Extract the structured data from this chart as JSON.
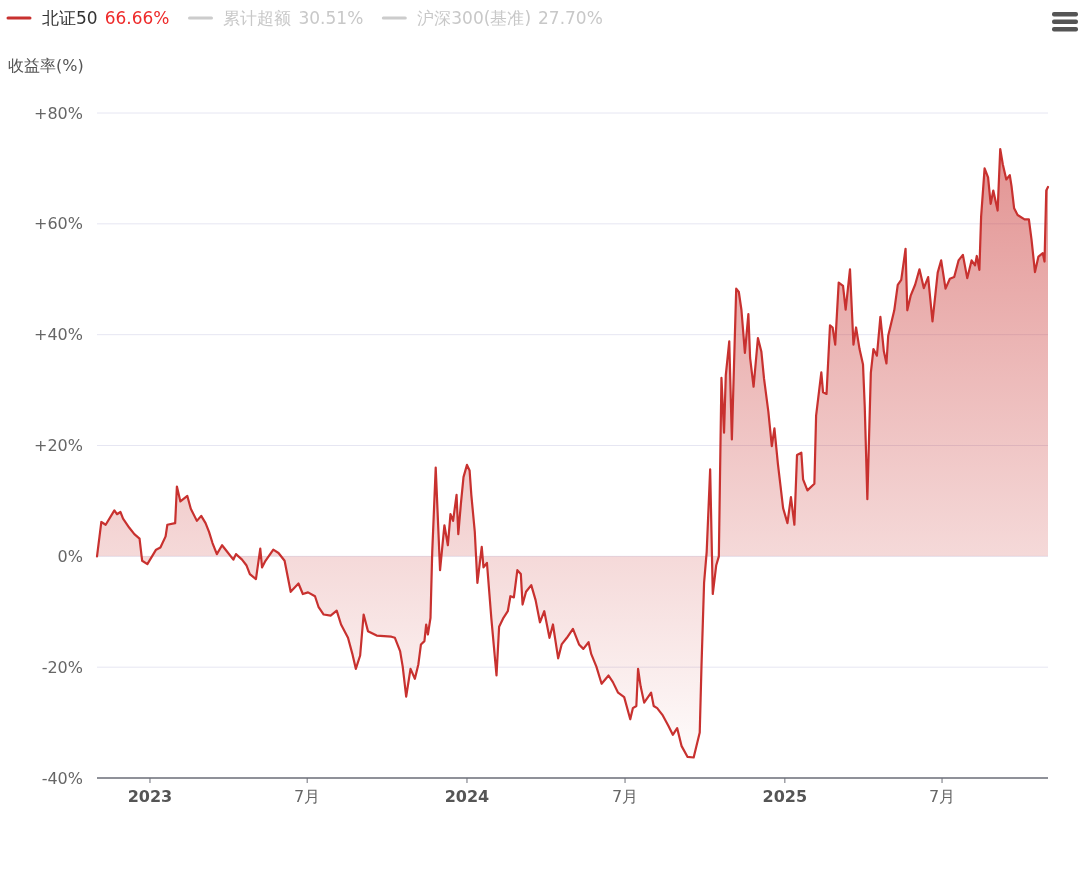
{
  "chart_data": {
    "type": "area",
    "ylabel": "收益率(%)",
    "legend": "top left",
    "grid": "y",
    "xlim": [
      "2022-11-01",
      "2025-10-31"
    ],
    "xticks": [
      {
        "value": "2023-01-01",
        "label": "2023"
      },
      {
        "value": "2023-07-01",
        "label": "7月"
      },
      {
        "value": "2024-01-01",
        "label": "2024"
      },
      {
        "value": "2024-07-01",
        "label": "7月"
      },
      {
        "value": "2025-01-01",
        "label": "2025"
      },
      {
        "value": "2025-07-01",
        "label": "7月"
      }
    ],
    "ylim": [
      -40,
      80
    ],
    "yticks": [
      {
        "value": -40,
        "label": "-40%"
      },
      {
        "value": -20,
        "label": "-20%"
      },
      {
        "value": 0,
        "label": "0%"
      },
      {
        "value": 20,
        "label": "+20%"
      },
      {
        "value": 40,
        "label": "+40%"
      },
      {
        "value": 60,
        "label": "+60%"
      },
      {
        "value": 80,
        "label": "+80%"
      }
    ],
    "annotations": [
      "66.66%",
      "30.51%",
      "27.70%"
    ],
    "x": [
      "2022-11-01",
      "2022-11-06",
      "2022-11-11",
      "2022-11-21",
      "2022-11-24",
      "2022-11-28",
      "2022-12-01",
      "2022-12-08",
      "2022-12-14",
      "2022-12-20",
      "2022-12-23",
      "2022-12-29",
      "2023-01-08",
      "2023-01-13",
      "2023-01-19",
      "2023-01-21",
      "2023-01-30",
      "2023-02-01",
      "2023-02-05",
      "2023-02-13",
      "2023-02-17",
      "2023-02-24",
      "2023-03-01",
      "2023-03-06",
      "2023-03-10",
      "2023-03-14",
      "2023-03-19",
      "2023-03-25",
      "2023-03-30",
      "2023-04-07",
      "2023-04-10",
      "2023-04-17",
      "2023-04-22",
      "2023-04-26",
      "2023-05-03",
      "2023-05-08",
      "2023-05-10",
      "2023-05-14",
      "2023-05-23",
      "2023-05-29",
      "2023-06-05",
      "2023-06-12",
      "2023-06-21",
      "2023-06-26",
      "2023-07-02",
      "2023-07-10",
      "2023-07-14",
      "2023-07-20",
      "2023-07-28",
      "2023-08-04",
      "2023-08-09",
      "2023-08-17",
      "2023-08-22",
      "2023-08-26",
      "2023-08-31",
      "2023-09-04",
      "2023-09-09",
      "2023-09-19",
      "2023-10-06",
      "2023-10-10",
      "2023-10-16",
      "2023-10-19",
      "2023-10-23",
      "2023-10-28",
      "2023-11-02",
      "2023-11-06",
      "2023-11-09",
      "2023-11-13",
      "2023-11-15",
      "2023-11-17",
      "2023-11-20",
      "2023-11-22",
      "2023-11-26",
      "2023-12-01",
      "2023-12-06",
      "2023-12-10",
      "2023-12-13",
      "2023-12-16",
      "2023-12-20",
      "2023-12-22",
      "2023-12-25",
      "2023-12-28",
      "2024-01-01",
      "2024-01-04",
      "2024-01-06",
      "2024-01-10",
      "2024-01-13",
      "2024-01-18",
      "2024-01-20",
      "2024-01-24",
      "2024-01-29",
      "2024-02-04",
      "2024-02-07",
      "2024-02-12",
      "2024-02-17",
      "2024-02-20",
      "2024-02-24",
      "2024-02-28",
      "2024-03-03",
      "2024-03-05",
      "2024-03-09",
      "2024-03-15",
      "2024-03-20",
      "2024-03-25",
      "2024-03-30",
      "2024-04-05",
      "2024-04-09",
      "2024-04-15",
      "2024-04-19",
      "2024-04-25",
      "2024-05-02",
      "2024-05-09",
      "2024-05-14",
      "2024-05-20",
      "2024-05-23",
      "2024-05-29",
      "2024-06-04",
      "2024-06-12",
      "2024-06-17",
      "2024-06-23",
      "2024-06-30",
      "2024-07-07",
      "2024-07-10",
      "2024-07-14",
      "2024-07-16",
      "2024-07-19",
      "2024-07-23",
      "2024-07-31",
      "2024-08-03",
      "2024-08-07",
      "2024-08-13",
      "2024-08-20",
      "2024-08-25",
      "2024-08-30",
      "2024-09-04",
      "2024-09-11",
      "2024-09-18",
      "2024-09-25",
      "2024-09-27",
      "2024-09-30",
      "2024-10-03",
      "2024-10-07",
      "2024-10-10",
      "2024-10-14",
      "2024-10-17",
      "2024-10-20",
      "2024-10-23",
      "2024-10-25",
      "2024-10-29",
      "2024-11-01",
      "2024-11-06",
      "2024-11-09",
      "2024-11-12",
      "2024-11-16",
      "2024-11-20",
      "2024-11-22",
      "2024-11-26",
      "2024-12-01",
      "2024-12-05",
      "2024-12-08",
      "2024-12-13",
      "2024-12-17",
      "2024-12-20",
      "2024-12-24",
      "2024-12-27",
      "2024-12-30",
      "2025-01-04",
      "2025-01-08",
      "2025-01-12",
      "2025-01-15",
      "2025-01-20",
      "2025-01-22",
      "2025-01-27",
      "2025-02-04",
      "2025-02-06",
      "2025-02-12",
      "2025-02-14",
      "2025-02-18",
      "2025-02-22",
      "2025-02-25",
      "2025-02-28",
      "2025-03-04",
      "2025-03-09",
      "2025-03-12",
      "2025-03-17",
      "2025-03-21",
      "2025-03-24",
      "2025-03-28",
      "2025-04-01",
      "2025-04-03",
      "2025-04-06",
      "2025-04-10",
      "2025-04-13",
      "2025-04-17",
      "2025-04-21",
      "2025-04-25",
      "2025-04-28",
      "2025-04-30",
      "2025-05-07",
      "2025-05-11",
      "2025-05-15",
      "2025-05-20",
      "2025-05-22",
      "2025-05-26",
      "2025-05-31",
      "2025-06-05",
      "2025-06-10",
      "2025-06-15",
      "2025-06-20",
      "2025-06-26",
      "2025-06-30",
      "2025-07-05",
      "2025-07-10",
      "2025-07-15",
      "2025-07-20",
      "2025-07-25",
      "2025-07-30",
      "2025-08-04",
      "2025-08-08",
      "2025-08-10",
      "2025-08-13",
      "2025-08-15",
      "2025-08-19",
      "2025-08-23",
      "2025-08-26",
      "2025-08-29",
      "2025-09-03",
      "2025-09-06",
      "2025-09-09",
      "2025-09-13",
      "2025-09-17",
      "2025-09-19",
      "2025-09-22",
      "2025-09-26",
      "2025-10-04",
      "2025-10-09",
      "2025-10-12",
      "2025-10-16",
      "2025-10-20",
      "2025-10-25",
      "2025-10-27",
      "2025-10-29",
      "2025-10-31"
    ],
    "series": [
      {
        "name": "北证50",
        "color": "#c8312f",
        "values": [
          0,
          6.2,
          5.7,
          8.3,
          7.6,
          8,
          6.8,
          5.2,
          4,
          3.2,
          -0.8,
          -1.4,
          1.2,
          1.6,
          3.6,
          5.7,
          6,
          12.6,
          9.9,
          10.9,
          8.6,
          6.4,
          7.3,
          6,
          4.4,
          2.4,
          0.4,
          2,
          1,
          -0.6,
          0.4,
          -0.6,
          -1.6,
          -3.2,
          -4.1,
          1.4,
          -2,
          -0.8,
          1.2,
          0.6,
          -0.8,
          -6.4,
          -4.9,
          -6.8,
          -6.5,
          -7.2,
          -9.1,
          -10.5,
          -10.7,
          -9.8,
          -12.3,
          -14.7,
          -17.6,
          -20.3,
          -17.9,
          -10.5,
          -13.5,
          -14.3,
          -14.5,
          -14.7,
          -17.1,
          -19.9,
          -25.3,
          -20.3,
          -22.1,
          -19.5,
          -15.9,
          -15.3,
          -12.3,
          -14.1,
          -11.1,
          0.8,
          16,
          -2.5,
          5.6,
          2,
          7.6,
          6.4,
          11.1,
          4,
          9.5,
          14.3,
          16.5,
          15.5,
          11.1,
          4.4,
          -4.8,
          1.7,
          -2,
          -1.2,
          -11.1,
          -21.5,
          -12.7,
          -11.1,
          -9.9,
          -7.2,
          -7.4,
          -2.5,
          -3.2,
          -8.7,
          -6.4,
          -5.2,
          -7.9,
          -11.9,
          -9.9,
          -14.7,
          -12.3,
          -18.4,
          -15.9,
          -14.7,
          -13.1,
          -15.9,
          -16.7,
          -15.5,
          -17.6,
          -19.9,
          -23,
          -21.5,
          -22.7,
          -24.6,
          -25.4,
          -29.4,
          -27.4,
          -27,
          -20.3,
          -23.5,
          -26.4,
          -24.6,
          -27,
          -27.4,
          -28.6,
          -30.6,
          -32.2,
          -31,
          -34.2,
          -36.2,
          -36.3,
          -31.8,
          -19.9,
          -4.8,
          0.8,
          15.7,
          -6.8,
          -1.6,
          0,
          32.2,
          22.3,
          32.7,
          38.8,
          21.1,
          48.3,
          47.7,
          44.5,
          36.7,
          43.7,
          35.8,
          30.6,
          39.4,
          36.9,
          32.1,
          26.1,
          19.9,
          23.1,
          16.7,
          12.7,
          8.7,
          6,
          10.7,
          5.7,
          18.3,
          18.7,
          13.9,
          11.9,
          13.1,
          25.4,
          33.2,
          29.6,
          29.3,
          41.7,
          41.3,
          38.2,
          49.4,
          48.8,
          44.5,
          51.8,
          38.2,
          41.3,
          37.4,
          34.6,
          27,
          10.3,
          33.1,
          37.4,
          36.2,
          43.2,
          37,
          34.8,
          39.8,
          44.4,
          49,
          49.9,
          55.5,
          44.4,
          47.1,
          49,
          51.8,
          48.4,
          50.4,
          42.4,
          51.2,
          53.4,
          48.3,
          50.1,
          50.4,
          53.4,
          54.4,
          50.2,
          53.4,
          52.5,
          54.2,
          51.7,
          61.3,
          70,
          68.4,
          63.6,
          66,
          62.4,
          73.5,
          70.7,
          68,
          68.8,
          66.8,
          62.8,
          61.6,
          60.8,
          60.8,
          57.2,
          51.3,
          54.1,
          54.7,
          53.2,
          66,
          66.66
        ]
      },
      {
        "name": "累计超额",
        "color": "#cccccc",
        "values": [
          null,
          null,
          null,
          null,
          null,
          null,
          null,
          null,
          null,
          null,
          null,
          null,
          null,
          null,
          null,
          null,
          null,
          null,
          null,
          null,
          null,
          null,
          null,
          null,
          null,
          null,
          null,
          null,
          null,
          null,
          null,
          null,
          null,
          null,
          null,
          null,
          null,
          null,
          null,
          null,
          null,
          null,
          null,
          null,
          null,
          null,
          null,
          null,
          null,
          null,
          null,
          null,
          null,
          null,
          null,
          null,
          null,
          null,
          null,
          null,
          null,
          null,
          null,
          null,
          null,
          null,
          null,
          null,
          null,
          null,
          null,
          null,
          null,
          null,
          null,
          null,
          null,
          null,
          null,
          null,
          null,
          null,
          null,
          null,
          null,
          null,
          null,
          null,
          null,
          null,
          null,
          null,
          null,
          null,
          null,
          null,
          null,
          null,
          null,
          null,
          null,
          null,
          null,
          null,
          null,
          null,
          null,
          null,
          null,
          null,
          null,
          null,
          null,
          null,
          null,
          null,
          null,
          null,
          null,
          null,
          null,
          null,
          null,
          null,
          null,
          null,
          null,
          null,
          null,
          null,
          null,
          null,
          null,
          null,
          null,
          null,
          null,
          null,
          null,
          null,
          null,
          null,
          null,
          null,
          null,
          null,
          null,
          null,
          null,
          null,
          null,
          null,
          null,
          null,
          null,
          null,
          null,
          null,
          null,
          null,
          null,
          null,
          null,
          null,
          null,
          null,
          null,
          null,
          null,
          null,
          null,
          null,
          null,
          null,
          null,
          null,
          null,
          null,
          null,
          null,
          null,
          null,
          null,
          null,
          null,
          null,
          null,
          null,
          null,
          null,
          null,
          null,
          null,
          null,
          null,
          null,
          null,
          null,
          null,
          null,
          null,
          null,
          null,
          null,
          null,
          null,
          null,
          null,
          null,
          null,
          null,
          null,
          null,
          null,
          null,
          null,
          null,
          null,
          null,
          null,
          null,
          null,
          null,
          null,
          null,
          null,
          null,
          null,
          null,
          null,
          null,
          null,
          null,
          null,
          null,
          null,
          null,
          null,
          null,
          null,
          null,
          null,
          null
        ]
      },
      {
        "name": "沪深300(基准)",
        "color": "#cccccc",
        "values": [
          null,
          null,
          null,
          null,
          null,
          null,
          null,
          null,
          null,
          null,
          null,
          null,
          null,
          null,
          null,
          null,
          null,
          null,
          null,
          null,
          null,
          null,
          null,
          null,
          null,
          null,
          null,
          null,
          null,
          null,
          null,
          null,
          null,
          null,
          null,
          null,
          null,
          null,
          null,
          null,
          null,
          null,
          null,
          null,
          null,
          null,
          null,
          null,
          null,
          null,
          null,
          null,
          null,
          null,
          null,
          null,
          null,
          null,
          null,
          null,
          null,
          null,
          null,
          null,
          null,
          null,
          null,
          null,
          null,
          null,
          null,
          null,
          null,
          null,
          null,
          null,
          null,
          null,
          null,
          null,
          null,
          null,
          null,
          null,
          null,
          null,
          null,
          null,
          null,
          null,
          null,
          null,
          null,
          null,
          null,
          null,
          null,
          null,
          null,
          null,
          null,
          null,
          null,
          null,
          null,
          null,
          null,
          null,
          null,
          null,
          null,
          null,
          null,
          null,
          null,
          null,
          null,
          null,
          null,
          null,
          null,
          null,
          null,
          null,
          null,
          null,
          null,
          null,
          null,
          null,
          null,
          null,
          null,
          null,
          null,
          null,
          null,
          null,
          null,
          null,
          null,
          null,
          null,
          null,
          null,
          null,
          null,
          null,
          null,
          null,
          null,
          null,
          null,
          null,
          null,
          null,
          null,
          null,
          null,
          null,
          null,
          null,
          null,
          null,
          null,
          null,
          null,
          null,
          null,
          null,
          null,
          null,
          null,
          null,
          null,
          null,
          null,
          null,
          null,
          null,
          null,
          null,
          null,
          null,
          null,
          null,
          null,
          null,
          null,
          null,
          null,
          null,
          null,
          null,
          null,
          null,
          null,
          null,
          null,
          null,
          null,
          null,
          null,
          null,
          null,
          null,
          null,
          null,
          null,
          null,
          null,
          null,
          null,
          null,
          null,
          null,
          null,
          null,
          null,
          null,
          null,
          null,
          null,
          null,
          null,
          null,
          null,
          null,
          null,
          null,
          null,
          null,
          null,
          null,
          null,
          null,
          null,
          null,
          null,
          null,
          null,
          null,
          null
        ]
      }
    ]
  }
}
